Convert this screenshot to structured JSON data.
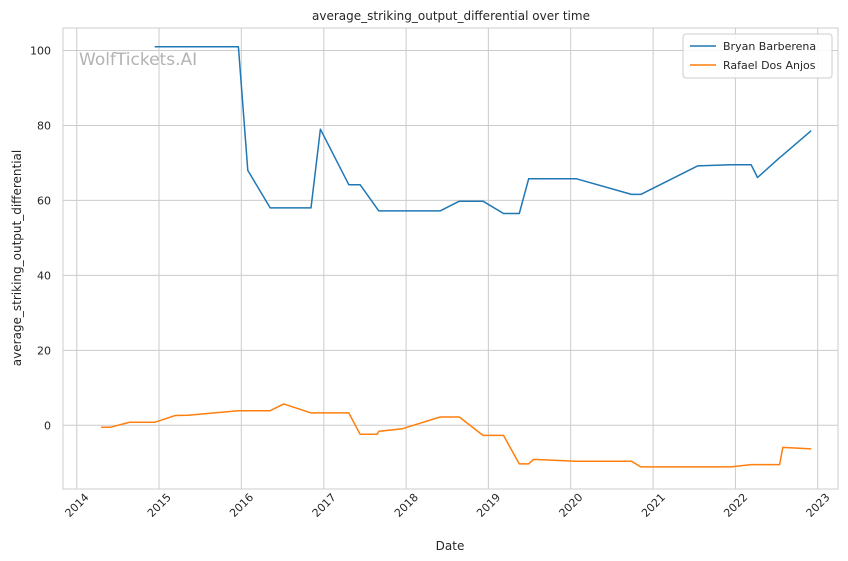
{
  "chart_data": {
    "type": "line",
    "title": "average_striking_output_differential over time",
    "xlabel": "Date",
    "ylabel": "average_striking_output_differential",
    "watermark": "WolfTickets.AI",
    "xlim": [
      "2013-11-01",
      "2023-04-01"
    ],
    "ylim": [
      -17,
      106
    ],
    "x_ticks": [
      "2014",
      "2015",
      "2016",
      "2017",
      "2018",
      "2019",
      "2020",
      "2021",
      "2022",
      "2023"
    ],
    "y_ticks": [
      0,
      20,
      40,
      60,
      80,
      100
    ],
    "grid": true,
    "legend_position": "top-right",
    "series": [
      {
        "name": "Bryan Barberena",
        "color": "#1f77b4",
        "points": [
          [
            "2014-12-13",
            101
          ],
          [
            "2015-12-19",
            101
          ],
          [
            "2016-01-30",
            68
          ],
          [
            "2016-05-08",
            58
          ],
          [
            "2016-11-05",
            58
          ],
          [
            "2016-12-17",
            79
          ],
          [
            "2017-04-22",
            64.2
          ],
          [
            "2017-06-11",
            64.2
          ],
          [
            "2017-09-02",
            57.2
          ],
          [
            "2018-06-01",
            57.2
          ],
          [
            "2018-08-25",
            59.8
          ],
          [
            "2018-12-08",
            59.8
          ],
          [
            "2019-03-09",
            56.5
          ],
          [
            "2019-05-18",
            56.5
          ],
          [
            "2019-06-29",
            65.8
          ],
          [
            "2020-01-25",
            65.8
          ],
          [
            "2020-09-27",
            61.6
          ],
          [
            "2020-11-07",
            61.6
          ],
          [
            "2021-07-17",
            69.2
          ],
          [
            "2021-12-11",
            69.5
          ],
          [
            "2022-03-12",
            69.5
          ],
          [
            "2022-04-09",
            66.1
          ],
          [
            "2022-07-16",
            71.4
          ],
          [
            "2022-07-30",
            72.1
          ],
          [
            "2022-12-03",
            78.6
          ]
        ]
      },
      {
        "name": "Rafael Dos Anjos",
        "color": "#ff7f0e",
        "points": [
          [
            "2014-04-19",
            -0.5
          ],
          [
            "2014-05-31",
            -0.5
          ],
          [
            "2014-08-23",
            0.8
          ],
          [
            "2014-12-13",
            0.8
          ],
          [
            "2015-03-14",
            2.6
          ],
          [
            "2015-05-09",
            2.7
          ],
          [
            "2015-12-19",
            3.9
          ],
          [
            "2016-05-08",
            3.9
          ],
          [
            "2016-07-07",
            5.7
          ],
          [
            "2016-11-05",
            3.3
          ],
          [
            "2017-04-22",
            3.3
          ],
          [
            "2017-06-11",
            -2.4
          ],
          [
            "2017-08-26",
            -2.4
          ],
          [
            "2017-09-02",
            -1.6
          ],
          [
            "2017-12-16",
            -0.9
          ],
          [
            "2018-06-01",
            2.2
          ],
          [
            "2018-08-25",
            2.2
          ],
          [
            "2018-12-08",
            -2.7
          ],
          [
            "2019-03-09",
            -2.7
          ],
          [
            "2019-05-18",
            -10.3
          ],
          [
            "2019-06-29",
            -10.3
          ],
          [
            "2019-07-20",
            -9.1
          ],
          [
            "2020-01-25",
            -9.6
          ],
          [
            "2020-09-27",
            -9.6
          ],
          [
            "2020-11-07",
            -11.1
          ],
          [
            "2021-12-11",
            -11.1
          ],
          [
            "2022-03-12",
            -10.5
          ],
          [
            "2022-07-16",
            -10.5
          ],
          [
            "2022-07-30",
            -5.9
          ],
          [
            "2022-12-03",
            -6.3
          ]
        ]
      }
    ]
  }
}
